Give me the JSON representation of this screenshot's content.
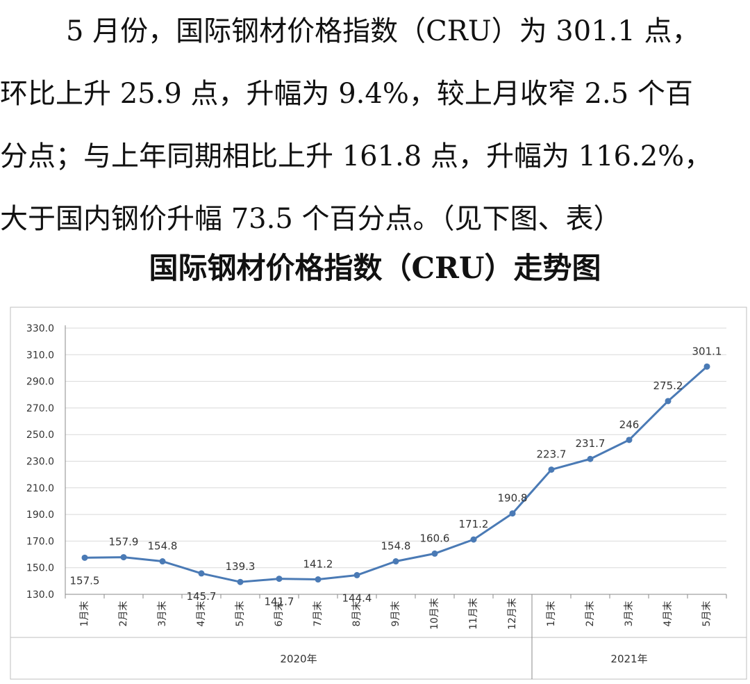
{
  "paragraph": {
    "lines": [
      "5 月份，国际钢材价格指数（CRU）为 301.1 点，",
      "环比上升 25.9 点，升幅为 9.4%，较上月收窄 2.5 个百",
      "分点；与上年同期相比上升 161.8 点，升幅为 116.2%，",
      "大于国内钢价升幅 73.5 个百分点。（见下图、表）"
    ]
  },
  "chart_title": "国际钢材价格指数（CRU）走势图",
  "chart_data": {
    "type": "line",
    "title": "国际钢材价格指数（CRU）走势图",
    "categories": [
      "1月末",
      "2月末",
      "3月末",
      "4月末",
      "5月末",
      "6月末",
      "7月末",
      "8月末",
      "9月末",
      "10月末",
      "11月末",
      "12月末",
      "1月末",
      "2月末",
      "3月末",
      "4月末",
      "5月末"
    ],
    "groups": [
      {
        "label": "2020年",
        "count": 12
      },
      {
        "label": "2021年",
        "count": 5
      }
    ],
    "values": [
      157.5,
      157.9,
      154.8,
      145.7,
      139.3,
      141.7,
      141.2,
      144.4,
      154.8,
      160.6,
      171.2,
      190.8,
      223.7,
      231.7,
      246,
      275.2,
      301.1
    ],
    "value_labels": [
      "157.5",
      "157.9",
      "154.8",
      "145.7",
      "139.3",
      "141.7",
      "141.2",
      "144.4",
      "154.8",
      "160.6",
      "171.2",
      "190.8",
      "223.7",
      "231.7",
      "246",
      "275.2",
      "301.1"
    ],
    "label_positions": [
      "below",
      "above",
      "above",
      "below",
      "above",
      "below",
      "above",
      "below",
      "above",
      "above",
      "above",
      "above",
      "above",
      "above",
      "above",
      "above",
      "above"
    ],
    "ylim": [
      130,
      330
    ],
    "yticks": [
      "130.0",
      "150.0",
      "170.0",
      "190.0",
      "210.0",
      "230.0",
      "250.0",
      "270.0",
      "290.0",
      "310.0",
      "330.0"
    ],
    "grid": true,
    "legend": "none",
    "colors": {
      "line": "#4a7ab5",
      "grid": "#d9d9d9",
      "axis": "#888888",
      "text": "#333333",
      "border": "#bfbfbf"
    }
  }
}
